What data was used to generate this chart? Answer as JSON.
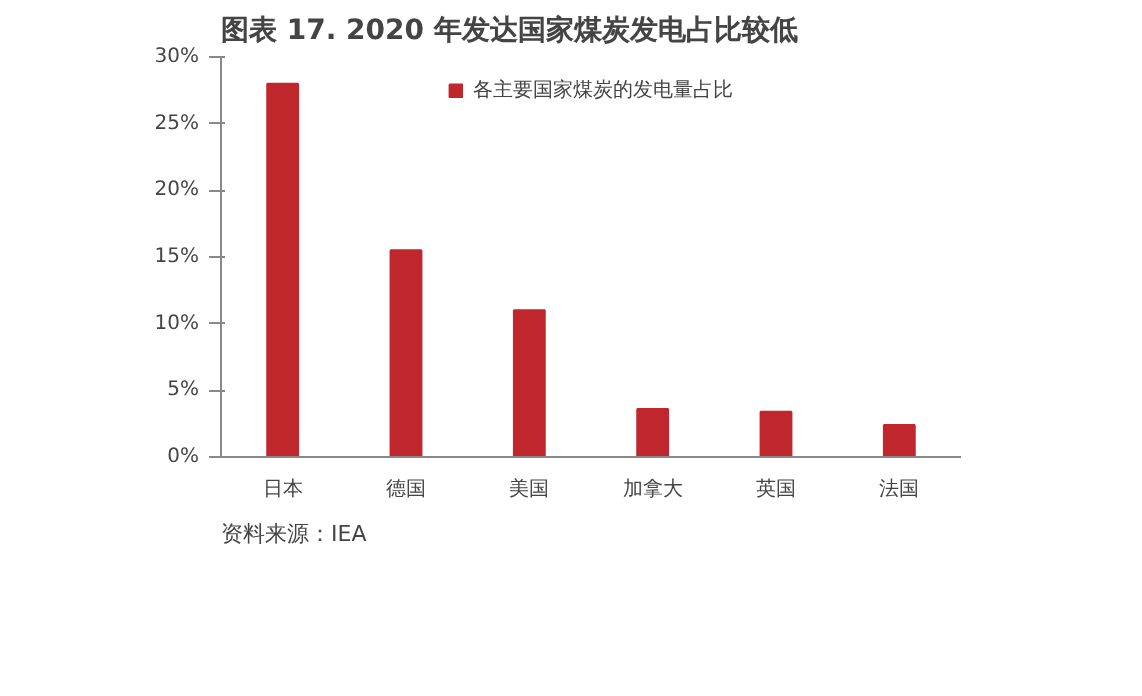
{
  "chart_data": {
    "type": "bar",
    "title": "图表 17. 2020 年发达国家煤炭发电占比较低",
    "categories": [
      "日本",
      "德国",
      "美国",
      "加拿大",
      "英国",
      "法国"
    ],
    "series": [
      {
        "name": "各主要国家煤炭的发电量占比",
        "color": "#c0272d",
        "values": [
          28.0,
          15.5,
          11.0,
          3.6,
          3.4,
          2.4
        ]
      }
    ],
    "ylim": [
      0,
      30
    ],
    "yticks": [
      {
        "value": 0,
        "label": "0%"
      },
      {
        "value": 5,
        "label": "5%"
      },
      {
        "value": 10,
        "label": "10%"
      },
      {
        "value": 15,
        "label": "15%"
      },
      {
        "value": 20,
        "label": "20%"
      },
      {
        "value": 25,
        "label": "25%"
      },
      {
        "value": 30,
        "label": "30%"
      }
    ],
    "grid": false,
    "legend": "top",
    "annotations": [
      "资料来源：IEA"
    ]
  }
}
